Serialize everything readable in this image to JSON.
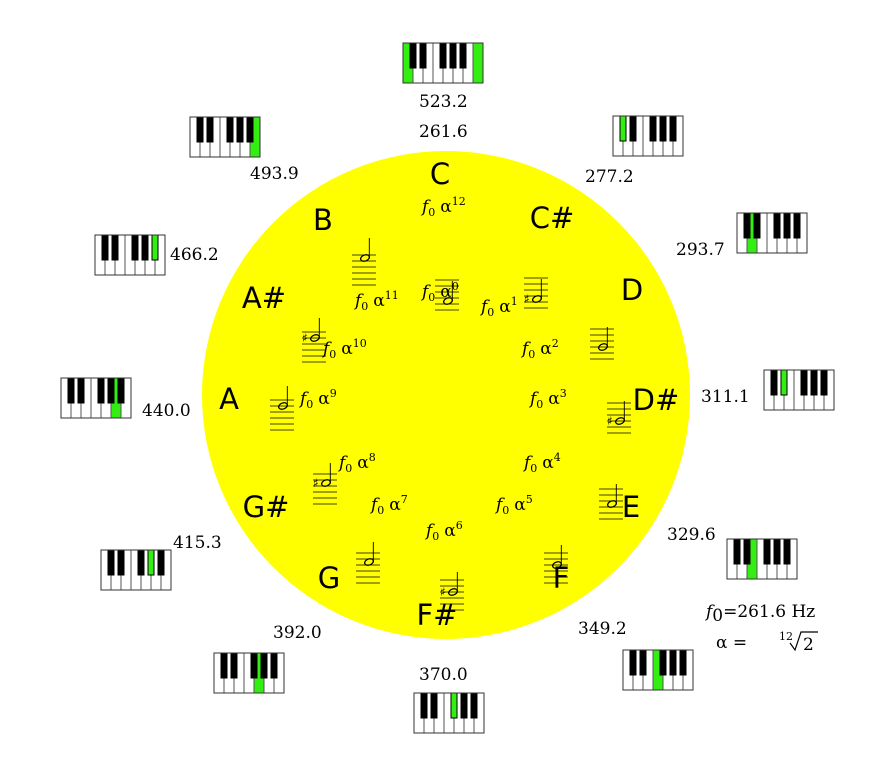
{
  "colors": {
    "circle": "#ffff00",
    "highlight": "#33ee11",
    "ink": "#000000"
  },
  "base_octave_frequency": "523.2",
  "notes": [
    {
      "name": "C",
      "exponent": "0",
      "frequency": "261.6",
      "sharp": false,
      "highlight_key": 0,
      "octave_exponent": "12"
    },
    {
      "name": "C#",
      "exponent": "1",
      "frequency": "277.2",
      "sharp": true,
      "highlight_key": 1
    },
    {
      "name": "D",
      "exponent": "2",
      "frequency": "293.7",
      "sharp": false,
      "highlight_key": 2
    },
    {
      "name": "D#",
      "exponent": "3",
      "frequency": "311.1",
      "sharp": true,
      "highlight_key": 3
    },
    {
      "name": "E",
      "exponent": "4",
      "frequency": "329.6",
      "sharp": false,
      "highlight_key": 4
    },
    {
      "name": "F",
      "exponent": "5",
      "frequency": "349.2",
      "sharp": false,
      "highlight_key": 5
    },
    {
      "name": "F#",
      "exponent": "6",
      "frequency": "370.0",
      "sharp": true,
      "highlight_key": 6
    },
    {
      "name": "G",
      "exponent": "7",
      "frequency": "392.0",
      "sharp": false,
      "highlight_key": 7
    },
    {
      "name": "G#",
      "exponent": "8",
      "frequency": "415.3",
      "sharp": true,
      "highlight_key": 8
    },
    {
      "name": "A",
      "exponent": "9",
      "frequency": "440.0",
      "sharp": false,
      "highlight_key": 9
    },
    {
      "name": "A#",
      "exponent": "10",
      "frequency": "466.2",
      "sharp": true,
      "highlight_key": 10
    },
    {
      "name": "B",
      "exponent": "11",
      "frequency": "493.9",
      "sharp": false,
      "highlight_key": 11
    }
  ],
  "formula": {
    "f_symbol": "f",
    "f_subscript": "0",
    "alpha_symbol": "α"
  },
  "legend": {
    "f0_line": "=261.6 Hz",
    "alpha_line": "α =",
    "root_index": "12",
    "root_radicand": "2"
  }
}
